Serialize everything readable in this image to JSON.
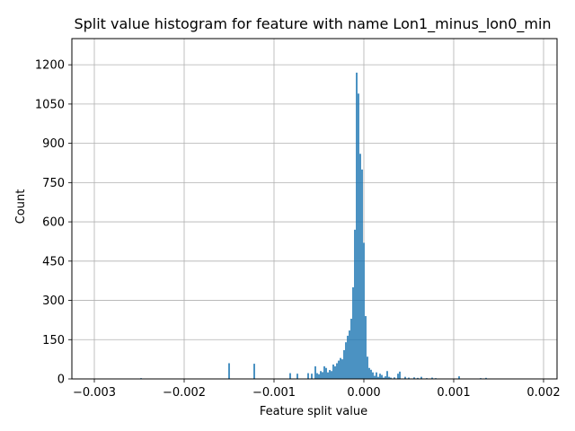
{
  "chart_data": {
    "type": "bar",
    "title": "Split value histogram for feature with name Lon1_minus_lon0_min",
    "xlabel": "Feature split value",
    "ylabel": "Count",
    "xlim": [
      -0.00325,
      0.00215
    ],
    "ylim": [
      0,
      1300
    ],
    "xticks": [
      -0.003,
      -0.002,
      -0.001,
      0.0,
      0.001,
      0.002
    ],
    "xtick_labels": [
      "−0.003",
      "−0.002",
      "−0.001",
      "0.000",
      "0.001",
      "0.002"
    ],
    "yticks": [
      0,
      150,
      300,
      450,
      600,
      750,
      900,
      1050,
      1200
    ],
    "ytick_labels": [
      "0",
      "150",
      "300",
      "450",
      "600",
      "750",
      "900",
      "1050",
      "1200"
    ],
    "grid": true,
    "bar_color": "#1f77b4",
    "bar_width": 1.6e-05,
    "x": [
      -0.00248,
      -0.0015,
      -0.00122,
      -0.00082,
      -0.00074,
      -0.00062,
      -0.00058,
      -0.00054,
      -0.00052,
      -0.0005,
      -0.00048,
      -0.00046,
      -0.00044,
      -0.00042,
      -0.0004,
      -0.00038,
      -0.00036,
      -0.00034,
      -0.00032,
      -0.0003,
      -0.00028,
      -0.00026,
      -0.00024,
      -0.00022,
      -0.0002,
      -0.00018,
      -0.00016,
      -0.00014,
      -0.00012,
      -0.0001,
      -8e-05,
      -6e-05,
      -4e-05,
      -2e-05,
      0.0,
      2e-05,
      4e-05,
      6e-05,
      8e-05,
      0.0001,
      0.00012,
      0.00014,
      0.00016,
      0.00018,
      0.0002,
      0.00022,
      0.00024,
      0.00026,
      0.00028,
      0.0003,
      0.00034,
      0.00038,
      0.0004,
      0.00046,
      0.0005,
      0.00056,
      0.0006,
      0.00064,
      0.0007,
      0.00076,
      0.0008,
      0.00106,
      0.0013,
      0.00136
    ],
    "values": [
      3,
      60,
      58,
      22,
      20,
      22,
      20,
      48,
      22,
      18,
      30,
      26,
      48,
      42,
      25,
      34,
      30,
      55,
      48,
      60,
      70,
      80,
      75,
      110,
      140,
      165,
      185,
      230,
      350,
      570,
      1170,
      1090,
      860,
      800,
      520,
      240,
      85,
      42,
      35,
      25,
      12,
      25,
      8,
      20,
      15,
      5,
      10,
      30,
      8,
      5,
      6,
      20,
      28,
      8,
      5,
      6,
      4,
      8,
      3,
      5,
      3,
      10,
      3,
      4
    ]
  }
}
